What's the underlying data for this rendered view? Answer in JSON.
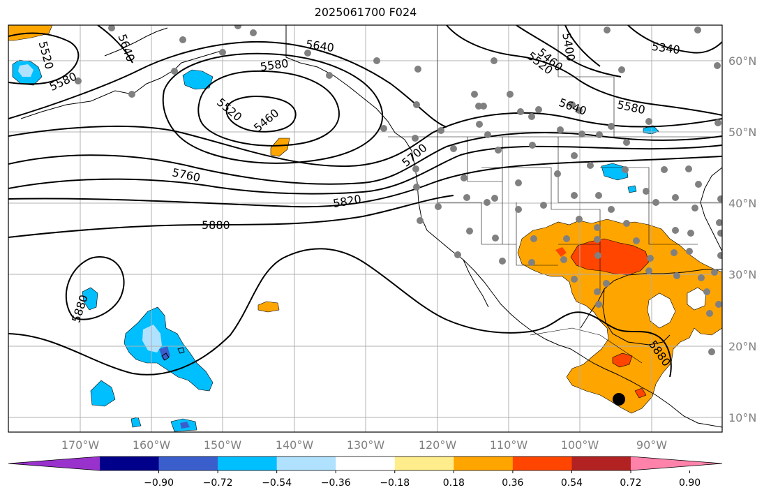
{
  "title": "2025061700 F024",
  "lon_labels": [
    {
      "lon": -170,
      "text": "170°W"
    },
    {
      "lon": -160,
      "text": "160°W"
    },
    {
      "lon": -150,
      "text": "150°W"
    },
    {
      "lon": -140,
      "text": "140°W"
    },
    {
      "lon": -130,
      "text": "130°W"
    },
    {
      "lon": -120,
      "text": "120°W"
    },
    {
      "lon": -110,
      "text": "110°W"
    },
    {
      "lon": -100,
      "text": "100°W"
    },
    {
      "lon": -90,
      "text": "90°W"
    }
  ],
  "lat_labels": [
    {
      "lat": 60,
      "text": "60°N"
    },
    {
      "lat": 50,
      "text": "50°N"
    },
    {
      "lat": 40,
      "text": "40°N"
    },
    {
      "lat": 30,
      "text": "30°N"
    },
    {
      "lat": 20,
      "text": "20°N"
    },
    {
      "lat": 10,
      "text": "10°N"
    }
  ],
  "contour_labels": [
    "5340",
    "5400",
    "5460",
    "5520",
    "5580",
    "5640",
    "5700",
    "5760",
    "5820",
    "5880"
  ],
  "colorbar": {
    "colors": [
      "#9932CC",
      "#00008B",
      "#3A5FCD",
      "#00BFFF",
      "#B0E2FF",
      "#FFFFFF",
      "#FFEC8B",
      "#FFA500",
      "#FF4500",
      "#B22222",
      "#FF82AB"
    ],
    "ticks": [
      "−0.90",
      "−0.72",
      "−0.54",
      "−0.36",
      "−0.18",
      "0.18",
      "0.36",
      "0.54",
      "0.72",
      "0.90"
    ]
  }
}
